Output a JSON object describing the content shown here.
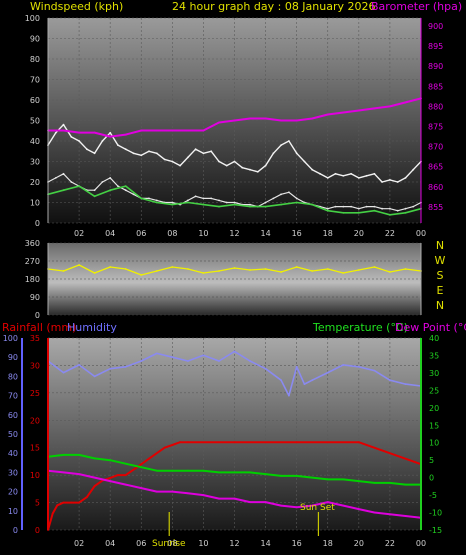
{
  "header": {
    "wind_title": "Windspeed (kph)",
    "main_title": "24 hour graph day : 08 January 2026",
    "baro_title": "Barometer (hpa)"
  },
  "bottom_header": {
    "rain_title": "Rainfall (mm)",
    "humidity_title": "Humidity",
    "temp_title": "Temperature (°C)",
    "dew_title": "Dew Point (°C)"
  },
  "markers": {
    "sunrise": "Sunrise",
    "sunset": "Sun Set"
  },
  "colors": {
    "wind": "#e6e6e6",
    "gust": "#f2f2f2",
    "avg": "#44d044",
    "baro": "#e000e0",
    "dir": "#f0f000",
    "rain": "#e00000",
    "humidity": "#8a8af0",
    "temp": "#00d000",
    "dew": "#dd00dd",
    "title_yellow": "#e0e000",
    "title_magenta": "#e000e0",
    "title_blue": "#7070ff",
    "title_green": "#20e020"
  },
  "chart_data": [
    {
      "type": "line",
      "title": "24 hour graph day : 08 January 2026",
      "x_ticks": [
        "02",
        "04",
        "06",
        "08",
        "10",
        "12",
        "14",
        "16",
        "18",
        "20",
        "22",
        "00"
      ],
      "xlim": [
        0,
        24
      ],
      "ylabel": "Windspeed (kph)",
      "ylim": [
        0,
        100
      ],
      "y_ticks": [
        "0",
        "10",
        "20",
        "30",
        "40",
        "50",
        "60",
        "70",
        "80",
        "90",
        "100"
      ],
      "y2label": "Barometer (hpa)",
      "y2lim": [
        851,
        902
      ],
      "y2_ticks": [
        "855",
        "860",
        "865",
        "870",
        "875",
        "880",
        "885",
        "890",
        "895",
        "900"
      ],
      "series": [
        {
          "name": "Barometer (hpa)",
          "x": [
            0,
            1,
            2,
            3,
            4,
            5,
            6,
            7,
            8,
            9,
            10,
            11,
            12,
            13,
            14,
            15,
            16,
            17,
            18,
            19,
            20,
            21,
            22,
            23,
            24
          ],
          "values": [
            874,
            874,
            873.5,
            873.5,
            872.5,
            873,
            874,
            874,
            874,
            874,
            874,
            876,
            876.5,
            877,
            877,
            876.5,
            876.5,
            877,
            878,
            878.5,
            879,
            879.5,
            880,
            881,
            882
          ]
        },
        {
          "x": [
            0,
            0.5,
            1,
            1.5,
            2,
            2.5,
            3,
            3.5,
            4,
            4.5,
            5,
            5.5,
            6,
            6.5,
            7,
            7.5,
            8,
            8.5,
            9,
            9.5,
            10,
            10.5,
            11,
            11.5,
            12,
            12.5,
            13,
            13.5,
            14,
            14.5,
            15,
            15.5,
            16,
            16.5,
            17,
            17.5,
            18,
            18.5,
            19,
            19.5,
            20,
            20.5,
            21,
            21.5,
            22,
            22.5,
            23,
            23.5,
            24
          ],
          "values": [
            38,
            44,
            48,
            42,
            40,
            36,
            34,
            40,
            44,
            38,
            36,
            34,
            33,
            35,
            34,
            31,
            30,
            28,
            32,
            36,
            34,
            35,
            30,
            28,
            30,
            27,
            26,
            25,
            28,
            34,
            38,
            40,
            34,
            30,
            26,
            24,
            22,
            24,
            23,
            24,
            22,
            23,
            24,
            20,
            21,
            20,
            22,
            26,
            30
          ],
          "style": "gust"
        },
        {
          "x": [
            0,
            0.5,
            1,
            1.5,
            2,
            2.5,
            3,
            3.5,
            4,
            4.5,
            5,
            5.5,
            6,
            6.5,
            7,
            7.5,
            8,
            8.5,
            9,
            9.5,
            10,
            10.5,
            11,
            11.5,
            12,
            12.5,
            13,
            13.5,
            14,
            14.5,
            15,
            15.5,
            16,
            16.5,
            17,
            17.5,
            18,
            18.5,
            19,
            19.5,
            20,
            20.5,
            21,
            21.5,
            22,
            22.5,
            23,
            23.5,
            24
          ],
          "values": [
            20,
            22,
            24,
            20,
            18,
            16,
            16,
            20,
            22,
            18,
            16,
            14,
            12,
            12,
            11,
            10,
            10,
            9,
            11,
            13,
            12,
            12,
            11,
            10,
            10,
            9,
            9,
            8,
            10,
            12,
            14,
            15,
            12,
            10,
            9,
            8,
            7,
            8,
            8,
            8,
            7,
            8,
            8,
            7,
            7,
            6,
            7,
            8,
            10
          ],
          "style": "wind"
        },
        {
          "x": [
            0,
            1,
            2,
            3,
            4,
            5,
            6,
            7,
            8,
            9,
            10,
            11,
            12,
            13,
            14,
            15,
            16,
            17,
            18,
            19,
            20,
            21,
            22,
            23,
            24
          ],
          "values": [
            14,
            16,
            18,
            13,
            16,
            18,
            12,
            10,
            9,
            10,
            9,
            8,
            9,
            8,
            8,
            9,
            10,
            9,
            6,
            5,
            5,
            6,
            4,
            5,
            7
          ],
          "style": "average"
        }
      ]
    },
    {
      "type": "scatter",
      "ylabel": "Wind direction",
      "xlim": [
        0,
        24
      ],
      "ylim": [
        0,
        360
      ],
      "y_ticks": [
        "0",
        "90",
        "180",
        "270",
        "360"
      ],
      "compass": [
        "N",
        "W",
        "S",
        "E",
        "N"
      ],
      "series": [
        {
          "x": [
            0,
            1,
            2,
            3,
            4,
            5,
            6,
            7,
            8,
            9,
            10,
            11,
            12,
            13,
            14,
            15,
            16,
            17,
            18,
            19,
            20,
            21,
            22,
            23,
            24
          ],
          "values": [
            230,
            220,
            250,
            210,
            240,
            230,
            200,
            220,
            240,
            230,
            210,
            220,
            235,
            225,
            230,
            215,
            240,
            220,
            230,
            210,
            225,
            240,
            215,
            230,
            220
          ]
        }
      ]
    },
    {
      "type": "line",
      "xlim": [
        0,
        24
      ],
      "x_ticks": [
        "02",
        "04",
        "06",
        "08",
        "10",
        "12",
        "14",
        "16",
        "18",
        "20",
        "22",
        "00"
      ],
      "rain_label": "Rainfall (mm)",
      "rain_ylim": [
        0,
        35
      ],
      "rain_ticks": [
        "0",
        "5",
        "10",
        "15",
        "20",
        "25",
        "30",
        "35"
      ],
      "humidity_label": "Humidity",
      "humidity_ylim": [
        0,
        100
      ],
      "humidity_ticks": [
        "0",
        "10",
        "20",
        "30",
        "40",
        "50",
        "60",
        "70",
        "80",
        "90",
        "100"
      ],
      "temp_label": "Temperature (°C)",
      "temp_ylim": [
        -15,
        40
      ],
      "temp_ticks": [
        "-15",
        "-10",
        "-5",
        "0",
        "5",
        "10",
        "15",
        "20",
        "25",
        "30",
        "35",
        "40"
      ],
      "series": [
        {
          "name": "Rainfall (mm)",
          "axis": "rain",
          "x": [
            0,
            0.3,
            0.6,
            1,
            1.5,
            2,
            2.5,
            3,
            3.5,
            4,
            4.5,
            5,
            5.5,
            6,
            6.5,
            7,
            7.5,
            8,
            8.5,
            9,
            12,
            16,
            20,
            24
          ],
          "values": [
            0,
            3,
            4.5,
            5,
            5,
            5,
            6,
            8,
            9,
            9.5,
            10,
            10,
            11,
            12,
            13,
            14,
            15,
            15.5,
            16,
            16,
            16,
            16,
            16,
            12
          ]
        },
        {
          "name": "Humidity",
          "axis": "humidity",
          "x": [
            0,
            1,
            2,
            3,
            4,
            5,
            6,
            7,
            8,
            9,
            10,
            11,
            12,
            13,
            14,
            15,
            15.5,
            16,
            16.5,
            17,
            18,
            19,
            20,
            21,
            22,
            23,
            24
          ],
          "values": [
            88,
            82,
            86,
            80,
            84,
            85,
            88,
            92,
            90,
            88,
            91,
            88,
            93,
            88,
            84,
            78,
            70,
            85,
            76,
            78,
            82,
            86,
            85,
            83,
            78,
            76,
            75
          ]
        },
        {
          "name": "Temperature (°C)",
          "axis": "temp",
          "x": [
            0,
            1,
            2,
            3,
            4,
            5,
            6,
            7,
            8,
            9,
            10,
            11,
            12,
            13,
            14,
            15,
            16,
            17,
            18,
            19,
            20,
            21,
            22,
            23,
            24
          ],
          "values": [
            6,
            6.5,
            6.5,
            5.5,
            5,
            4,
            3,
            2,
            2,
            2,
            2,
            1.5,
            1.5,
            1.5,
            1,
            0.5,
            0.5,
            0,
            -0.5,
            -0.5,
            -1,
            -1.5,
            -1.5,
            -2,
            -2
          ]
        },
        {
          "name": "Dew Point (°C)",
          "axis": "temp",
          "x": [
            0,
            1,
            2,
            3,
            4,
            5,
            6,
            7,
            8,
            9,
            10,
            11,
            12,
            13,
            14,
            15,
            16,
            17,
            18,
            19,
            20,
            21,
            22,
            23,
            24
          ],
          "values": [
            2,
            1.5,
            1,
            0,
            -1,
            -2,
            -3,
            -4,
            -4,
            -4.5,
            -5,
            -6,
            -6,
            -7,
            -7,
            -8,
            -8.5,
            -8,
            -7,
            -8,
            -9,
            -10,
            -10.5,
            -11,
            -11.5
          ]
        }
      ],
      "sunrise_x": 7.8,
      "sunset_x": 17.4
    }
  ]
}
